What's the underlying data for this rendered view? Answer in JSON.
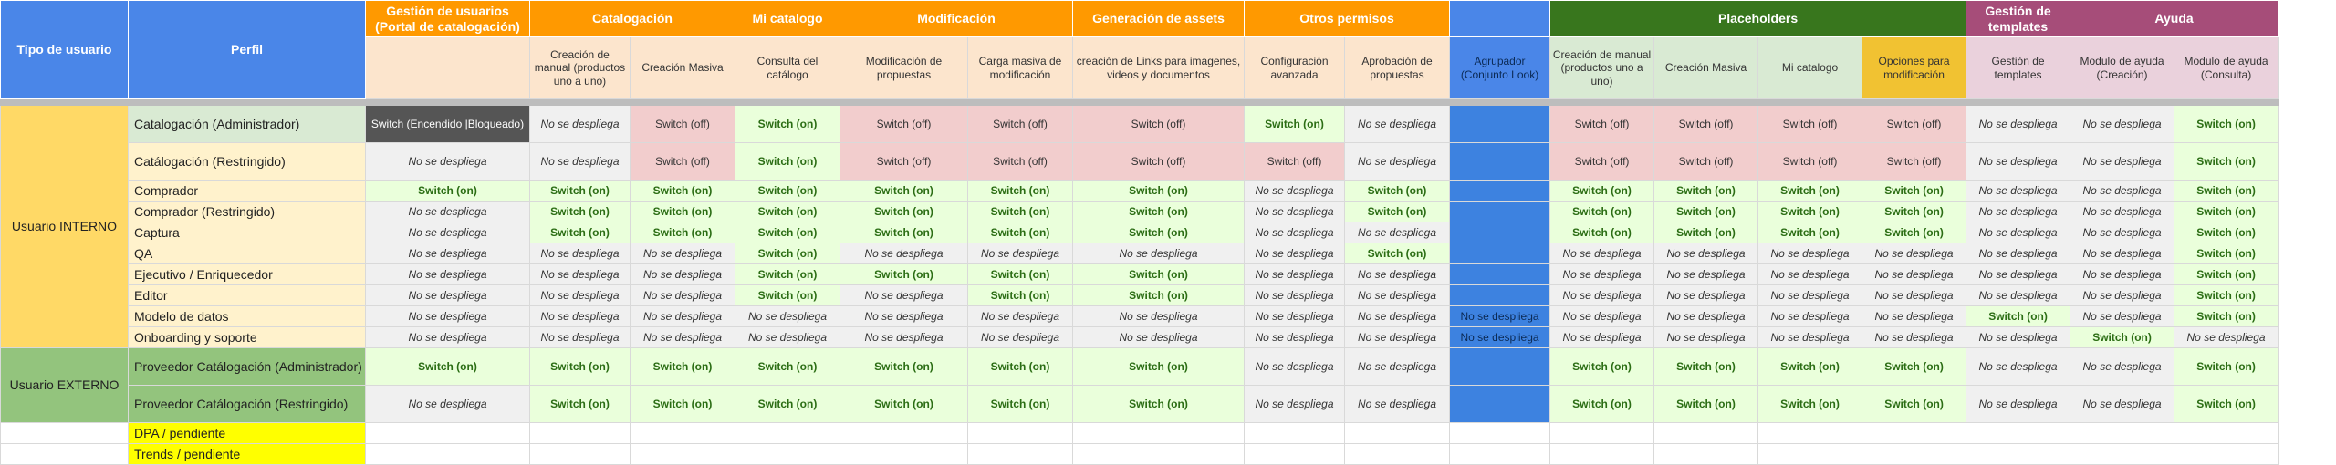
{
  "colors": {
    "blue_header": "#4a86e8",
    "orange_header": "#ff9900",
    "light_orange": "#fce5cd",
    "green_header": "#38761d",
    "purple_header": "#a64d79",
    "tipo_interno": "#ffd966",
    "tipo_externo": "#93c47d",
    "perfil_admin": "#d9ead3",
    "perfil_interno": "#fff2cc",
    "perfil_pendiente": "#ffff00",
    "switch_on": "#eaffdb",
    "switch_off": "#f2cdcd",
    "no_despliega": "#f0f0f0",
    "locked": "#555555",
    "agrupador_cell": "#3d82e0",
    "opciones_header": "#f1c232"
  },
  "header": {
    "tipo_label": "Tipo de usuario",
    "perfil_label": "Perfil",
    "groups": [
      {
        "label": "Gestión de usuarios (Portal de catalogación)",
        "span": 1,
        "color": "#ff9900"
      },
      {
        "label": "Catalogación",
        "span": 2,
        "color": "#ff9900"
      },
      {
        "label": "Mi catalogo",
        "span": 1,
        "color": "#ff9900"
      },
      {
        "label": "Modificación",
        "span": 2,
        "color": "#ff9900"
      },
      {
        "label": "Generación de assets",
        "span": 1,
        "color": "#ff9900"
      },
      {
        "label": "Otros permisos",
        "span": 2,
        "color": "#ff9900"
      },
      {
        "label": "",
        "span": 1,
        "color": "#4a86e8"
      },
      {
        "label": "Placeholders",
        "span": 4,
        "color": "#38761d"
      },
      {
        "label": "Gestión de templates",
        "span": 1,
        "color": "#a64d79"
      },
      {
        "label": "Ayuda",
        "span": 2,
        "color": "#a64d79"
      }
    ],
    "columns": [
      {
        "label": "",
        "bg": "#fce5cd"
      },
      {
        "label": "Creación de manual (productos uno a uno)",
        "bg": "#fce5cd"
      },
      {
        "label": "Creación Masiva",
        "bg": "#fce5cd"
      },
      {
        "label": "Consulta del catálogo",
        "bg": "#fce5cd"
      },
      {
        "label": "Modificación de propuestas",
        "bg": "#fce5cd"
      },
      {
        "label": "Carga masiva de modificación",
        "bg": "#fce5cd"
      },
      {
        "label": "creación de Links para imagenes, videos y documentos",
        "bg": "#fce5cd"
      },
      {
        "label": "Configuración avanzada",
        "bg": "#fce5cd"
      },
      {
        "label": "Aprobación de propuestas",
        "bg": "#fce5cd"
      },
      {
        "label": "Agrupador (Conjunto Look)",
        "bg": "#4a86e8"
      },
      {
        "label": "Creación de manual (productos uno a uno)",
        "bg": "#d9ead3"
      },
      {
        "label": "Creación Masiva",
        "bg": "#d9ead3"
      },
      {
        "label": "Mi catalogo",
        "bg": "#d9ead3"
      },
      {
        "label": "Opciones para modificación",
        "bg": "#f1c232"
      },
      {
        "label": "Gestión de templates",
        "bg": "#ead1dc"
      },
      {
        "label": "Modulo de ayuda (Creación)",
        "bg": "#ead1dc"
      },
      {
        "label": "Modulo de ayuda (Consulta)",
        "bg": "#ead1dc"
      }
    ]
  },
  "labels": {
    "on": "Switch (on)",
    "off": "Switch (off)",
    "nd": "No se despliega",
    "lock": "Switch (Encendido |Bloqueado)"
  },
  "groups": [
    {
      "tipo": "Usuario INTERNO",
      "color": "#ffd966",
      "rows": [
        {
          "perfil": "Catalogación (Administrador)",
          "bg": "#d9ead3",
          "tall": true,
          "cells": [
            "lock",
            "nd",
            "off",
            "on",
            "off",
            "off",
            "off",
            "on",
            "nd",
            "blue",
            "off",
            "off",
            "off",
            "off",
            "nd",
            "nd",
            "on"
          ]
        },
        {
          "perfil": "Catálogación (Restringido)",
          "bg": "#fff2cc",
          "tall": true,
          "cells": [
            "nd",
            "nd",
            "off",
            "on",
            "off",
            "off",
            "off",
            "off",
            "nd",
            "blue",
            "off",
            "off",
            "off",
            "off",
            "nd",
            "nd",
            "on"
          ]
        },
        {
          "perfil": "Comprador",
          "bg": "#fff2cc",
          "cells": [
            "on",
            "on",
            "on",
            "on",
            "on",
            "on",
            "on",
            "nd",
            "on",
            "blue",
            "on",
            "on",
            "on",
            "on",
            "nd",
            "nd",
            "on"
          ]
        },
        {
          "perfil": "Comprador (Restringido)",
          "bg": "#fff2cc",
          "cells": [
            "nd",
            "on",
            "on",
            "on",
            "on",
            "on",
            "on",
            "nd",
            "on",
            "blue",
            "on",
            "on",
            "on",
            "on",
            "nd",
            "nd",
            "on"
          ]
        },
        {
          "perfil": "Captura",
          "bg": "#fff2cc",
          "cells": [
            "nd",
            "on",
            "on",
            "on",
            "on",
            "on",
            "on",
            "nd",
            "nd",
            "blue",
            "on",
            "on",
            "on",
            "on",
            "nd",
            "nd",
            "on"
          ]
        },
        {
          "perfil": "QA",
          "bg": "#fff2cc",
          "cells": [
            "nd",
            "nd",
            "nd",
            "on",
            "nd",
            "nd",
            "nd",
            "nd",
            "on",
            "blue",
            "nd",
            "nd",
            "nd",
            "nd",
            "nd",
            "nd",
            "on"
          ]
        },
        {
          "perfil": "Ejecutivo / Enriquecedor",
          "bg": "#fff2cc",
          "cells": [
            "nd",
            "nd",
            "nd",
            "on",
            "on",
            "on",
            "on",
            "nd",
            "nd",
            "blue",
            "nd",
            "nd",
            "nd",
            "nd",
            "nd",
            "nd",
            "on"
          ]
        },
        {
          "perfil": "Editor",
          "bg": "#fff2cc",
          "cells": [
            "nd",
            "nd",
            "nd",
            "on",
            "nd",
            "on",
            "on",
            "nd",
            "nd",
            "blue",
            "nd",
            "nd",
            "nd",
            "nd",
            "nd",
            "nd",
            "on"
          ]
        },
        {
          "perfil": "Modelo de datos",
          "bg": "#fff2cc",
          "cells": [
            "nd",
            "nd",
            "nd",
            "nd",
            "nd",
            "nd",
            "nd",
            "nd",
            "nd",
            "bluend",
            "nd",
            "nd",
            "nd",
            "nd",
            "on",
            "nd",
            "on"
          ]
        },
        {
          "perfil": "Onboarding y soporte",
          "bg": "#fff2cc",
          "cells": [
            "nd",
            "nd",
            "nd",
            "nd",
            "nd",
            "nd",
            "nd",
            "nd",
            "nd",
            "bluend",
            "nd",
            "nd",
            "nd",
            "nd",
            "nd",
            "on",
            "nd"
          ]
        }
      ]
    },
    {
      "tipo": "Usuario EXTERNO",
      "color": "#93c47d",
      "rows": [
        {
          "perfil": "Proveedor Catálogación (Administrador)",
          "bg": "#93c47d",
          "tall": true,
          "cells": [
            "on",
            "on",
            "on",
            "on",
            "on",
            "on",
            "on",
            "nd",
            "nd",
            "blue",
            "on",
            "on",
            "on",
            "on",
            "nd",
            "nd",
            "on"
          ]
        },
        {
          "perfil": "Proveedor Catálogación (Restringido)",
          "bg": "#93c47d",
          "tall": true,
          "cells": [
            "nd",
            "on",
            "on",
            "on",
            "on",
            "on",
            "on",
            "nd",
            "nd",
            "blue",
            "on",
            "on",
            "on",
            "on",
            "nd",
            "nd",
            "on"
          ]
        }
      ]
    }
  ],
  "pending": [
    "DPA / pendiente",
    "Trends / pendiente"
  ]
}
